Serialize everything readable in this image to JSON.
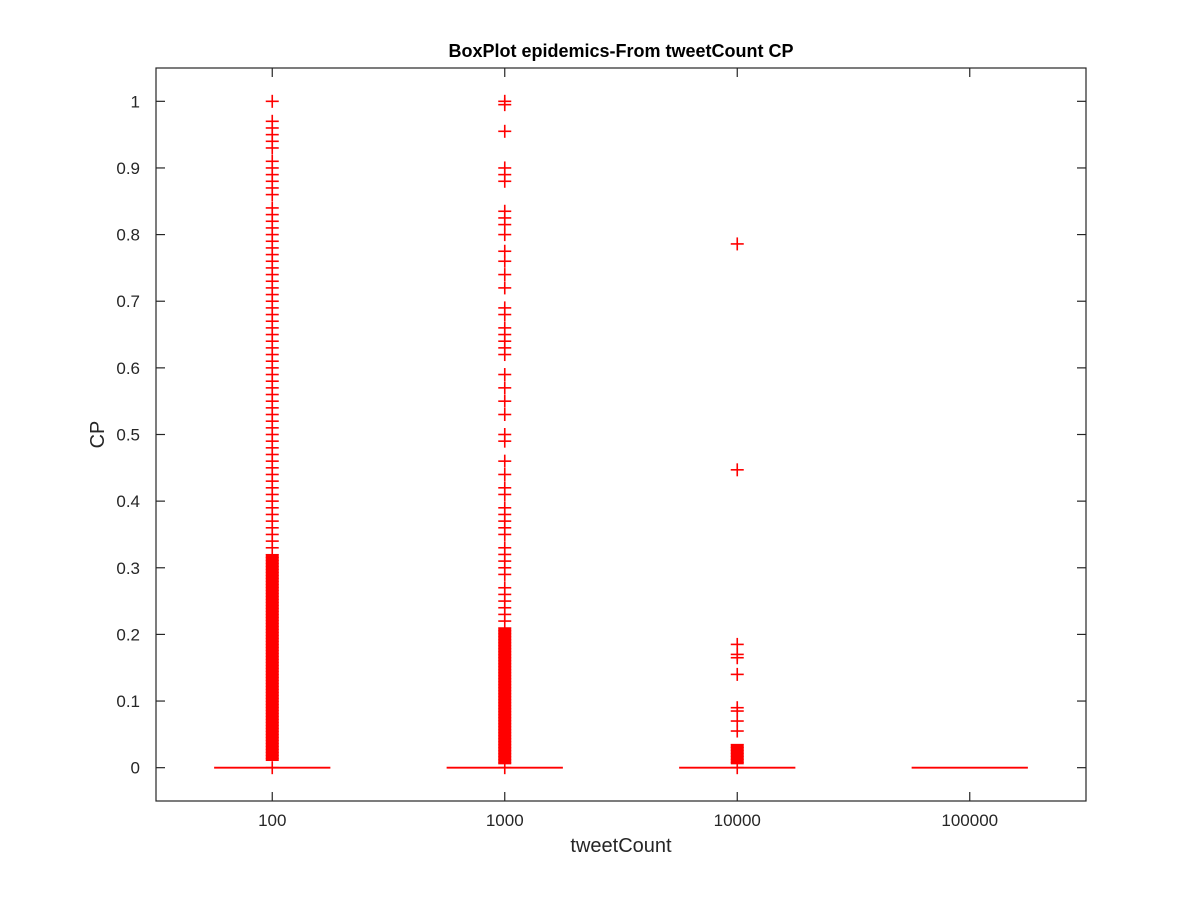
{
  "chart_data": {
    "type": "box",
    "title": "BoxPlot epidemics-From tweetCount CP",
    "xlabel": "tweetCount",
    "ylabel": "CP",
    "categories": [
      "100",
      "1000",
      "10000",
      "100000"
    ],
    "ylim": [
      -0.05,
      1.05
    ],
    "yticks": [
      "0",
      "0.1",
      "0.2",
      "0.3",
      "0.4",
      "0.5",
      "0.6",
      "0.7",
      "0.8",
      "0.9",
      "1"
    ],
    "grid": false,
    "legend": "none",
    "color": "#ff0000",
    "boxes": [
      {
        "category": "100",
        "min": 0,
        "q1": 0,
        "median": 0,
        "q3": 0,
        "max": 0,
        "outlier_band": [
          0.01,
          0.32
        ],
        "outliers": [
          0.33,
          0.34,
          0.35,
          0.36,
          0.37,
          0.38,
          0.39,
          0.4,
          0.41,
          0.42,
          0.43,
          0.44,
          0.45,
          0.46,
          0.47,
          0.48,
          0.49,
          0.5,
          0.51,
          0.52,
          0.53,
          0.54,
          0.55,
          0.56,
          0.57,
          0.58,
          0.59,
          0.6,
          0.61,
          0.62,
          0.63,
          0.64,
          0.65,
          0.66,
          0.67,
          0.68,
          0.69,
          0.7,
          0.71,
          0.72,
          0.73,
          0.74,
          0.75,
          0.76,
          0.77,
          0.78,
          0.79,
          0.8,
          0.81,
          0.82,
          0.83,
          0.84,
          0.86,
          0.87,
          0.88,
          0.89,
          0.9,
          0.91,
          0.93,
          0.94,
          0.95,
          0.96,
          0.97,
          1.0
        ]
      },
      {
        "category": "1000",
        "min": 0,
        "q1": 0,
        "median": 0,
        "q3": 0,
        "max": 0,
        "outlier_band": [
          0.005,
          0.21
        ],
        "outliers": [
          0.22,
          0.23,
          0.24,
          0.25,
          0.26,
          0.27,
          0.29,
          0.3,
          0.31,
          0.32,
          0.33,
          0.35,
          0.36,
          0.37,
          0.38,
          0.39,
          0.41,
          0.42,
          0.44,
          0.46,
          0.49,
          0.5,
          0.53,
          0.55,
          0.57,
          0.59,
          0.62,
          0.63,
          0.64,
          0.65,
          0.66,
          0.68,
          0.69,
          0.72,
          0.74,
          0.76,
          0.775,
          0.8,
          0.815,
          0.825,
          0.835,
          0.88,
          0.89,
          0.9,
          0.955,
          0.995,
          1.0
        ]
      },
      {
        "category": "10000",
        "min": 0,
        "q1": 0,
        "median": 0,
        "q3": 0,
        "max": 0,
        "outlier_band": [
          0.005,
          0.035
        ],
        "outliers": [
          0.055,
          0.07,
          0.085,
          0.09,
          0.14,
          0.165,
          0.17,
          0.185,
          0.447,
          0.786
        ]
      },
      {
        "category": "100000",
        "min": 0,
        "q1": 0,
        "median": 0,
        "q3": 0,
        "max": 0,
        "outlier_band": null,
        "outliers": []
      }
    ]
  }
}
